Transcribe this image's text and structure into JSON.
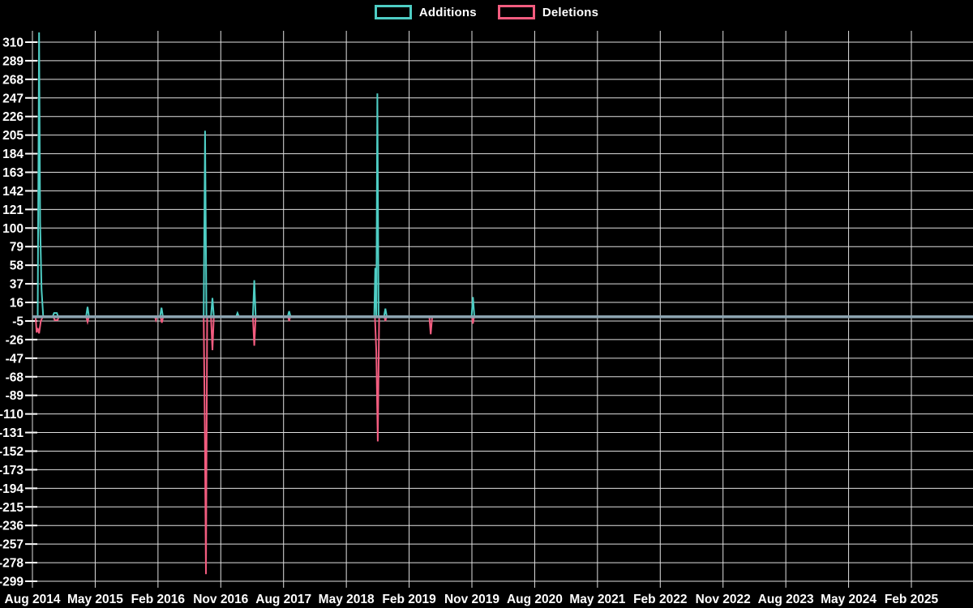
{
  "legend": {
    "items": [
      {
        "label": "Additions",
        "color": "#4ecdc4"
      },
      {
        "label": "Deletions",
        "color": "#f25c7f"
      }
    ]
  },
  "chart_data": {
    "type": "line",
    "title": "",
    "xlabel": "",
    "ylabel": "",
    "x_tick_labels": [
      "Aug 2014",
      "May 2015",
      "Feb 2016",
      "Nov 2016",
      "Aug 2017",
      "May 2018",
      "Feb 2019",
      "Nov 2019",
      "Aug 2020",
      "May 2021",
      "Feb 2022",
      "Nov 2022",
      "Aug 2023",
      "May 2024",
      "Feb 2025"
    ],
    "x_tick_interval_months": 9,
    "y_ticks": [
      310,
      289,
      268,
      247,
      226,
      205,
      184,
      163,
      142,
      121,
      100,
      79,
      58,
      37,
      16,
      -5,
      -26,
      -47,
      -68,
      -89,
      -110,
      -131,
      -152,
      -173,
      -194,
      -215,
      -236,
      -257,
      -278,
      -299
    ],
    "ylim": [
      -306,
      321
    ],
    "grid": true,
    "legend_position": "top-center",
    "background_color": "#000000",
    "grid_color": "#e0e0e0",
    "zero_baseline_color": "#8ca3b0",
    "series": [
      {
        "name": "Additions",
        "color": "#4ecdc4",
        "note": "x = months since Aug 2014, y = lines added per week; flat 0 elsewhere",
        "points": [
          [
            0,
            0
          ],
          [
            0.75,
            0
          ],
          [
            0.95,
            321
          ],
          [
            1.1,
            106
          ],
          [
            1.3,
            31
          ],
          [
            1.55,
            0
          ],
          [
            2.9,
            0
          ],
          [
            3.1,
            4
          ],
          [
            3.5,
            4
          ],
          [
            3.7,
            0
          ],
          [
            7.7,
            0
          ],
          [
            7.9,
            11
          ],
          [
            8.1,
            0
          ],
          [
            18.3,
            0
          ],
          [
            18.5,
            10
          ],
          [
            18.7,
            0
          ],
          [
            24.55,
            0
          ],
          [
            24.75,
            210
          ],
          [
            24.95,
            0
          ],
          [
            25.6,
            0
          ],
          [
            25.8,
            21
          ],
          [
            26.0,
            0
          ],
          [
            29.2,
            0
          ],
          [
            29.4,
            4
          ],
          [
            29.6,
            0
          ],
          [
            31.6,
            0
          ],
          [
            31.8,
            41
          ],
          [
            32.0,
            0
          ],
          [
            36.6,
            0
          ],
          [
            36.8,
            6
          ],
          [
            37.0,
            0
          ],
          [
            49.0,
            0
          ],
          [
            49.15,
            55
          ],
          [
            49.3,
            0
          ],
          [
            49.45,
            252
          ],
          [
            49.62,
            0
          ],
          [
            50.4,
            0
          ],
          [
            50.6,
            9
          ],
          [
            50.8,
            0
          ],
          [
            62.95,
            0
          ],
          [
            63.15,
            22
          ],
          [
            63.35,
            0
          ],
          [
            135,
            0
          ]
        ]
      },
      {
        "name": "Deletions",
        "color": "#f25c7f",
        "note": "x = months since Aug 2014, y = lines deleted per week (negative); flat 0 elsewhere",
        "points": [
          [
            0,
            0
          ],
          [
            0.45,
            0
          ],
          [
            0.6,
            -18
          ],
          [
            0.75,
            -13
          ],
          [
            0.95,
            -19
          ],
          [
            1.2,
            -5
          ],
          [
            1.5,
            0
          ],
          [
            3.0,
            0
          ],
          [
            3.2,
            -4
          ],
          [
            3.6,
            -4
          ],
          [
            3.8,
            0
          ],
          [
            7.7,
            0
          ],
          [
            7.9,
            -6
          ],
          [
            8.1,
            0
          ],
          [
            17.55,
            0
          ],
          [
            17.7,
            -4
          ],
          [
            17.85,
            0
          ],
          [
            18.35,
            0
          ],
          [
            18.55,
            -7
          ],
          [
            18.75,
            0
          ],
          [
            24.55,
            0
          ],
          [
            24.72,
            -134
          ],
          [
            24.88,
            -291
          ],
          [
            25.05,
            0
          ],
          [
            25.6,
            0
          ],
          [
            25.8,
            -38
          ],
          [
            26.0,
            0
          ],
          [
            31.6,
            0
          ],
          [
            31.8,
            -33
          ],
          [
            32.0,
            0
          ],
          [
            36.65,
            0
          ],
          [
            36.8,
            -5
          ],
          [
            36.95,
            0
          ],
          [
            49.1,
            0
          ],
          [
            49.3,
            -39
          ],
          [
            49.5,
            -141
          ],
          [
            49.7,
            0
          ],
          [
            50.45,
            0
          ],
          [
            50.6,
            -5
          ],
          [
            50.75,
            0
          ],
          [
            56.9,
            0
          ],
          [
            57.1,
            -20
          ],
          [
            57.3,
            0
          ],
          [
            63.0,
            0
          ],
          [
            63.15,
            -8
          ],
          [
            63.3,
            0
          ],
          [
            135,
            0
          ]
        ]
      }
    ]
  }
}
